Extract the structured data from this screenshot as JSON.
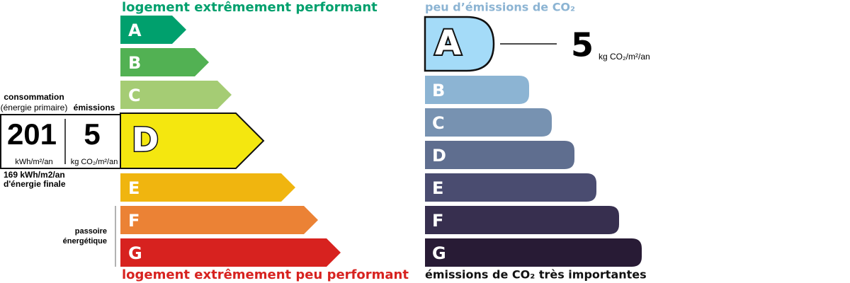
{
  "energy": {
    "top_label": "logement extrêmement performant",
    "bottom_label": "logement extrêmement peu performant",
    "classes": [
      "A",
      "B",
      "C",
      "D",
      "E",
      "F",
      "G"
    ],
    "colors": [
      "#00a06d",
      "#52b153",
      "#a5cc74",
      "#f4e70f",
      "#f0b50f",
      "#eb8235",
      "#d7221f"
    ],
    "current": 3,
    "consumption_label": "consommation",
    "consumption_sub": "(énergie primaire)",
    "emissions_label": "émissions",
    "consumption_value": "201",
    "consumption_unit": "kWh/m²/an",
    "emissions_value": "5",
    "emissions_unit": "kg CO₂/m²/an",
    "final_energy": "169 kWh/m2/an",
    "final_energy_sub": "d'énergie finale",
    "passoire": "passoire",
    "passoire_sub": "énergétique"
  },
  "climate": {
    "top_label": "peu d’émissions de CO₂",
    "bottom_label": "émissions de CO₂ très importantes",
    "classes": [
      "A",
      "B",
      "C",
      "D",
      "E",
      "F",
      "G"
    ],
    "colors": [
      "#a4dbf8",
      "#8cb4d3",
      "#7792b1",
      "#5f6e8f",
      "#4a4c70",
      "#372f4f",
      "#281b35"
    ],
    "current": 0,
    "value": "5",
    "unit": "kg CO₂/m²/an"
  }
}
